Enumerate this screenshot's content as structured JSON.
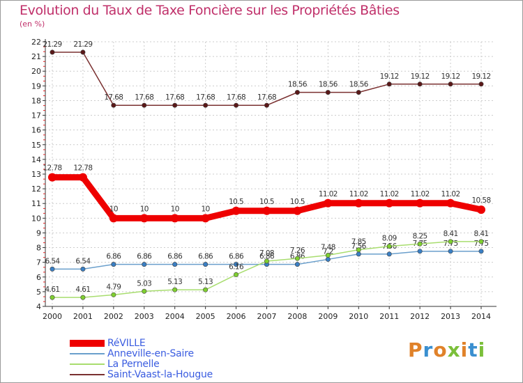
{
  "header": {
    "title": "Evolution du Taux de Taxe Foncière sur les Propriétés Bâties",
    "subtitle": "(en %)"
  },
  "logo": {
    "text": "Proxiti",
    "colors": [
      "#e0822a",
      "#3a8fd0",
      "#e0822a",
      "#7bbf3a",
      "#e0822a",
      "#3a8fd0",
      "#7bbf3a"
    ]
  },
  "chart_data": {
    "type": "line",
    "title": "Evolution du Taux de Taxe Foncière sur les Propriétés Bâties",
    "ylabel": "(en %)",
    "xlabel": "",
    "ylim": [
      4,
      22
    ],
    "yticks": [
      4,
      5,
      6,
      7,
      8,
      9,
      10,
      11,
      12,
      13,
      14,
      15,
      16,
      17,
      18,
      19,
      20,
      21,
      22
    ],
    "categories": [
      "2000",
      "2001",
      "2002",
      "2003",
      "2004",
      "2005",
      "2006",
      "2007",
      "2008",
      "2009",
      "2010",
      "2011",
      "2012",
      "2013",
      "2014"
    ],
    "series": [
      {
        "name": "RéVILLE",
        "color": "#ee0000",
        "marker": "#ee0000",
        "bold": true,
        "values": [
          12.78,
          12.78,
          10,
          10,
          10,
          10,
          10.5,
          10.5,
          10.5,
          11.02,
          11.02,
          11.02,
          11.02,
          11.02,
          10.58
        ],
        "labels": [
          "12.78",
          "12.78",
          "10",
          "10",
          "10",
          "10",
          "10.5",
          "10.5",
          "10.5",
          "11.02",
          "11.02",
          "11.02",
          "11.02",
          "11.02",
          "10.58"
        ]
      },
      {
        "name": "Anneville-en-Saire",
        "color": "#6a9fcc",
        "marker": "#3a7fc4",
        "bold": false,
        "values": [
          6.54,
          6.54,
          6.86,
          6.86,
          6.86,
          6.86,
          6.86,
          6.86,
          6.86,
          7.2,
          7.56,
          7.56,
          7.75,
          7.75,
          7.75
        ],
        "labels": [
          "6.54",
          "6.54",
          "6.86",
          "6.86",
          "6.86",
          "6.86",
          "6.86",
          "6.86",
          "6.86",
          "7.2",
          "7.56",
          "7.56",
          "7.75",
          "7.75",
          "7.75"
        ]
      },
      {
        "name": "La Pernelle",
        "color": "#a8dd6e",
        "marker": "#7fcf30",
        "bold": false,
        "values": [
          4.61,
          4.61,
          4.79,
          5.03,
          5.13,
          5.13,
          6.16,
          7.08,
          7.26,
          7.48,
          7.85,
          8.09,
          8.25,
          8.41,
          8.41
        ],
        "labels": [
          "4.61",
          "4.61",
          "4.79",
          "5.03",
          "5.13",
          "5.13",
          "6.16",
          "7.08",
          "7.26",
          "7.48",
          "7.85",
          "8.09",
          "8.25",
          "8.41",
          "8.41"
        ]
      },
      {
        "name": "Saint-Vaast-la-Hougue",
        "color": "#7a3030",
        "marker": "#5a1818",
        "bold": false,
        "values": [
          21.29,
          21.29,
          17.68,
          17.68,
          17.68,
          17.68,
          17.68,
          17.68,
          18.56,
          18.56,
          18.56,
          19.12,
          19.12,
          19.12,
          19.12
        ],
        "labels": [
          "21.29",
          "21.29",
          "17.68",
          "17.68",
          "17.68",
          "17.68",
          "17.68",
          "17.68",
          "18.56",
          "18.56",
          "18.56",
          "19.12",
          "19.12",
          "19.12",
          "19.12"
        ]
      }
    ],
    "grid": true,
    "legend": "bottom-left"
  }
}
